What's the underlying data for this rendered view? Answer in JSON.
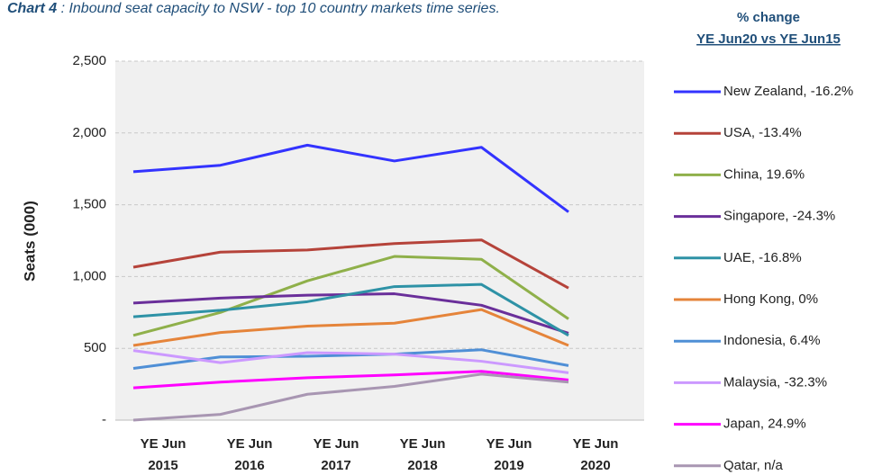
{
  "chart_data": {
    "type": "line",
    "title_lead": "Chart 4",
    "title": " : Inbound seat capacity to NSW - top 10 country markets time series.",
    "legend_title": [
      "% change",
      "YE Jun20 vs YE Jun15"
    ],
    "y_label": "Seats (000)",
    "categories": [
      [
        "YE Jun",
        "2015"
      ],
      [
        "YE Jun",
        "2016"
      ],
      [
        "YE Jun",
        "2017"
      ],
      [
        "YE Jun",
        "2018"
      ],
      [
        "YE Jun",
        "2019"
      ],
      [
        "YE Jun",
        "2020"
      ]
    ],
    "ylim": [
      0,
      2500
    ],
    "yticks": [
      {
        "value": 0,
        "label": "-"
      },
      500,
      {
        "value": 1000,
        "label": "1,000"
      },
      {
        "value": 1500,
        "label": "1,500"
      },
      {
        "value": 2000,
        "label": "2,000"
      },
      {
        "value": 2500,
        "label": "2,500"
      }
    ],
    "grid": true,
    "series": [
      {
        "name": "New Zealand, -16.2%",
        "color": "#3333ff",
        "values": [
          1730,
          1775,
          1915,
          1805,
          1900,
          1450
        ]
      },
      {
        "name": "USA, -13.4%",
        "color": "#b5433a",
        "values": [
          1065,
          1170,
          1185,
          1230,
          1255,
          920
        ]
      },
      {
        "name": "China, 19.6%",
        "color": "#8fb04a",
        "values": [
          590,
          750,
          970,
          1140,
          1120,
          705
        ]
      },
      {
        "name": "Singapore, -24.3%",
        "color": "#6a2f9a",
        "values": [
          815,
          850,
          870,
          880,
          800,
          605
        ]
      },
      {
        "name": "UAE, -16.8%",
        "color": "#2e92a6",
        "values": [
          720,
          765,
          825,
          930,
          945,
          590
        ]
      },
      {
        "name": "Hong Kong, 0%",
        "color": "#e5843a",
        "values": [
          520,
          610,
          655,
          675,
          770,
          520
        ]
      },
      {
        "name": "Indonesia, 6.4%",
        "color": "#4f8fd6",
        "values": [
          360,
          440,
          445,
          460,
          490,
          380
        ]
      },
      {
        "name": "Malaysia, -32.3%",
        "color": "#cc99ff",
        "values": [
          485,
          400,
          470,
          460,
          410,
          330
        ]
      },
      {
        "name": "Japan, 24.9%",
        "color": "#ff00ff",
        "values": [
          225,
          265,
          295,
          315,
          340,
          280
        ]
      },
      {
        "name": "Qatar, n/a",
        "color": "#a896b2",
        "values": [
          0,
          40,
          180,
          235,
          320,
          265
        ]
      }
    ]
  }
}
